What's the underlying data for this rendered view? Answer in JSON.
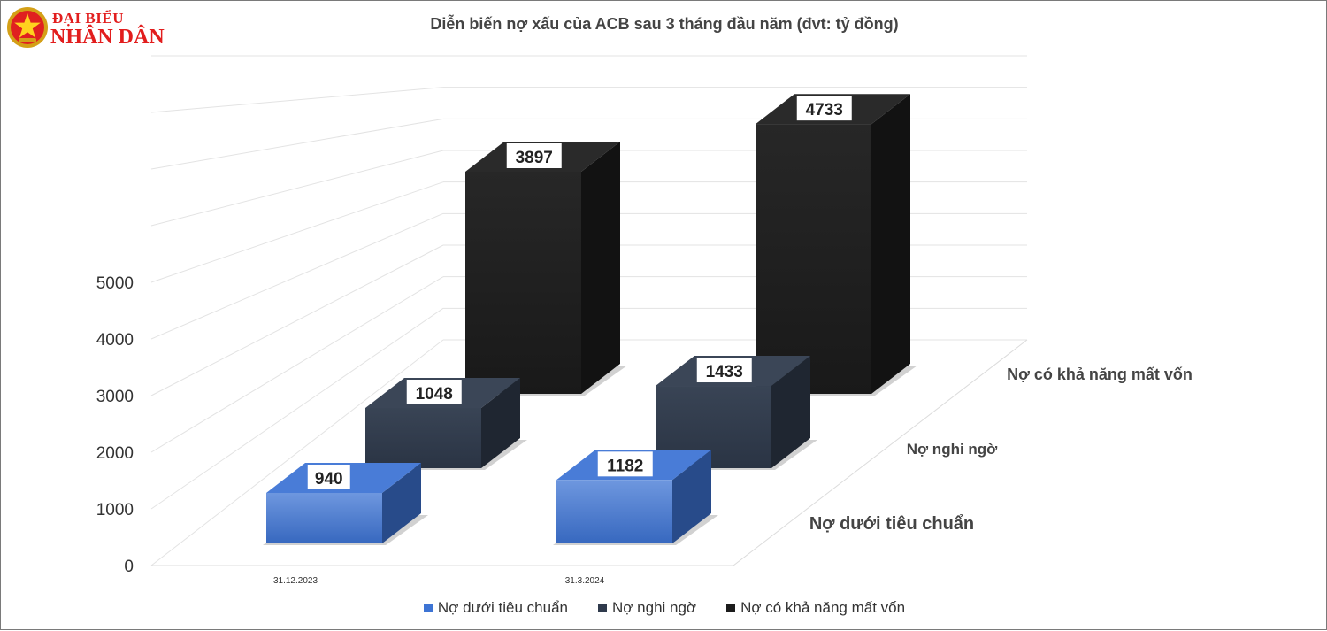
{
  "header": {
    "logo_line1": "ĐẠI BIỂU",
    "logo_line2": "NHÂN DÂN"
  },
  "chart_data": {
    "type": "bar",
    "title": "Diễn biến nợ xấu của ACB sau 3 tháng đầu năm (đvt: tỷ đồng)",
    "categories": [
      "31.12.2023",
      "31.3.2024"
    ],
    "series": [
      {
        "name": "Nợ dưới tiêu chuẩn",
        "values": [
          940,
          1182
        ],
        "color": "#3d74d4"
      },
      {
        "name": "Nợ nghi ngờ",
        "values": [
          1048,
          1433
        ],
        "color": "#2f3a4c"
      },
      {
        "name": "Nợ có khả năng mất vốn",
        "values": [
          3897,
          4733
        ],
        "color": "#1c1c1c"
      }
    ],
    "y_ticks": [
      "0",
      "1000",
      "2000",
      "3000",
      "4000",
      "5000"
    ],
    "ylim": [
      0,
      5000
    ],
    "grid": true,
    "legend_position": "bottom",
    "three_d": true
  }
}
